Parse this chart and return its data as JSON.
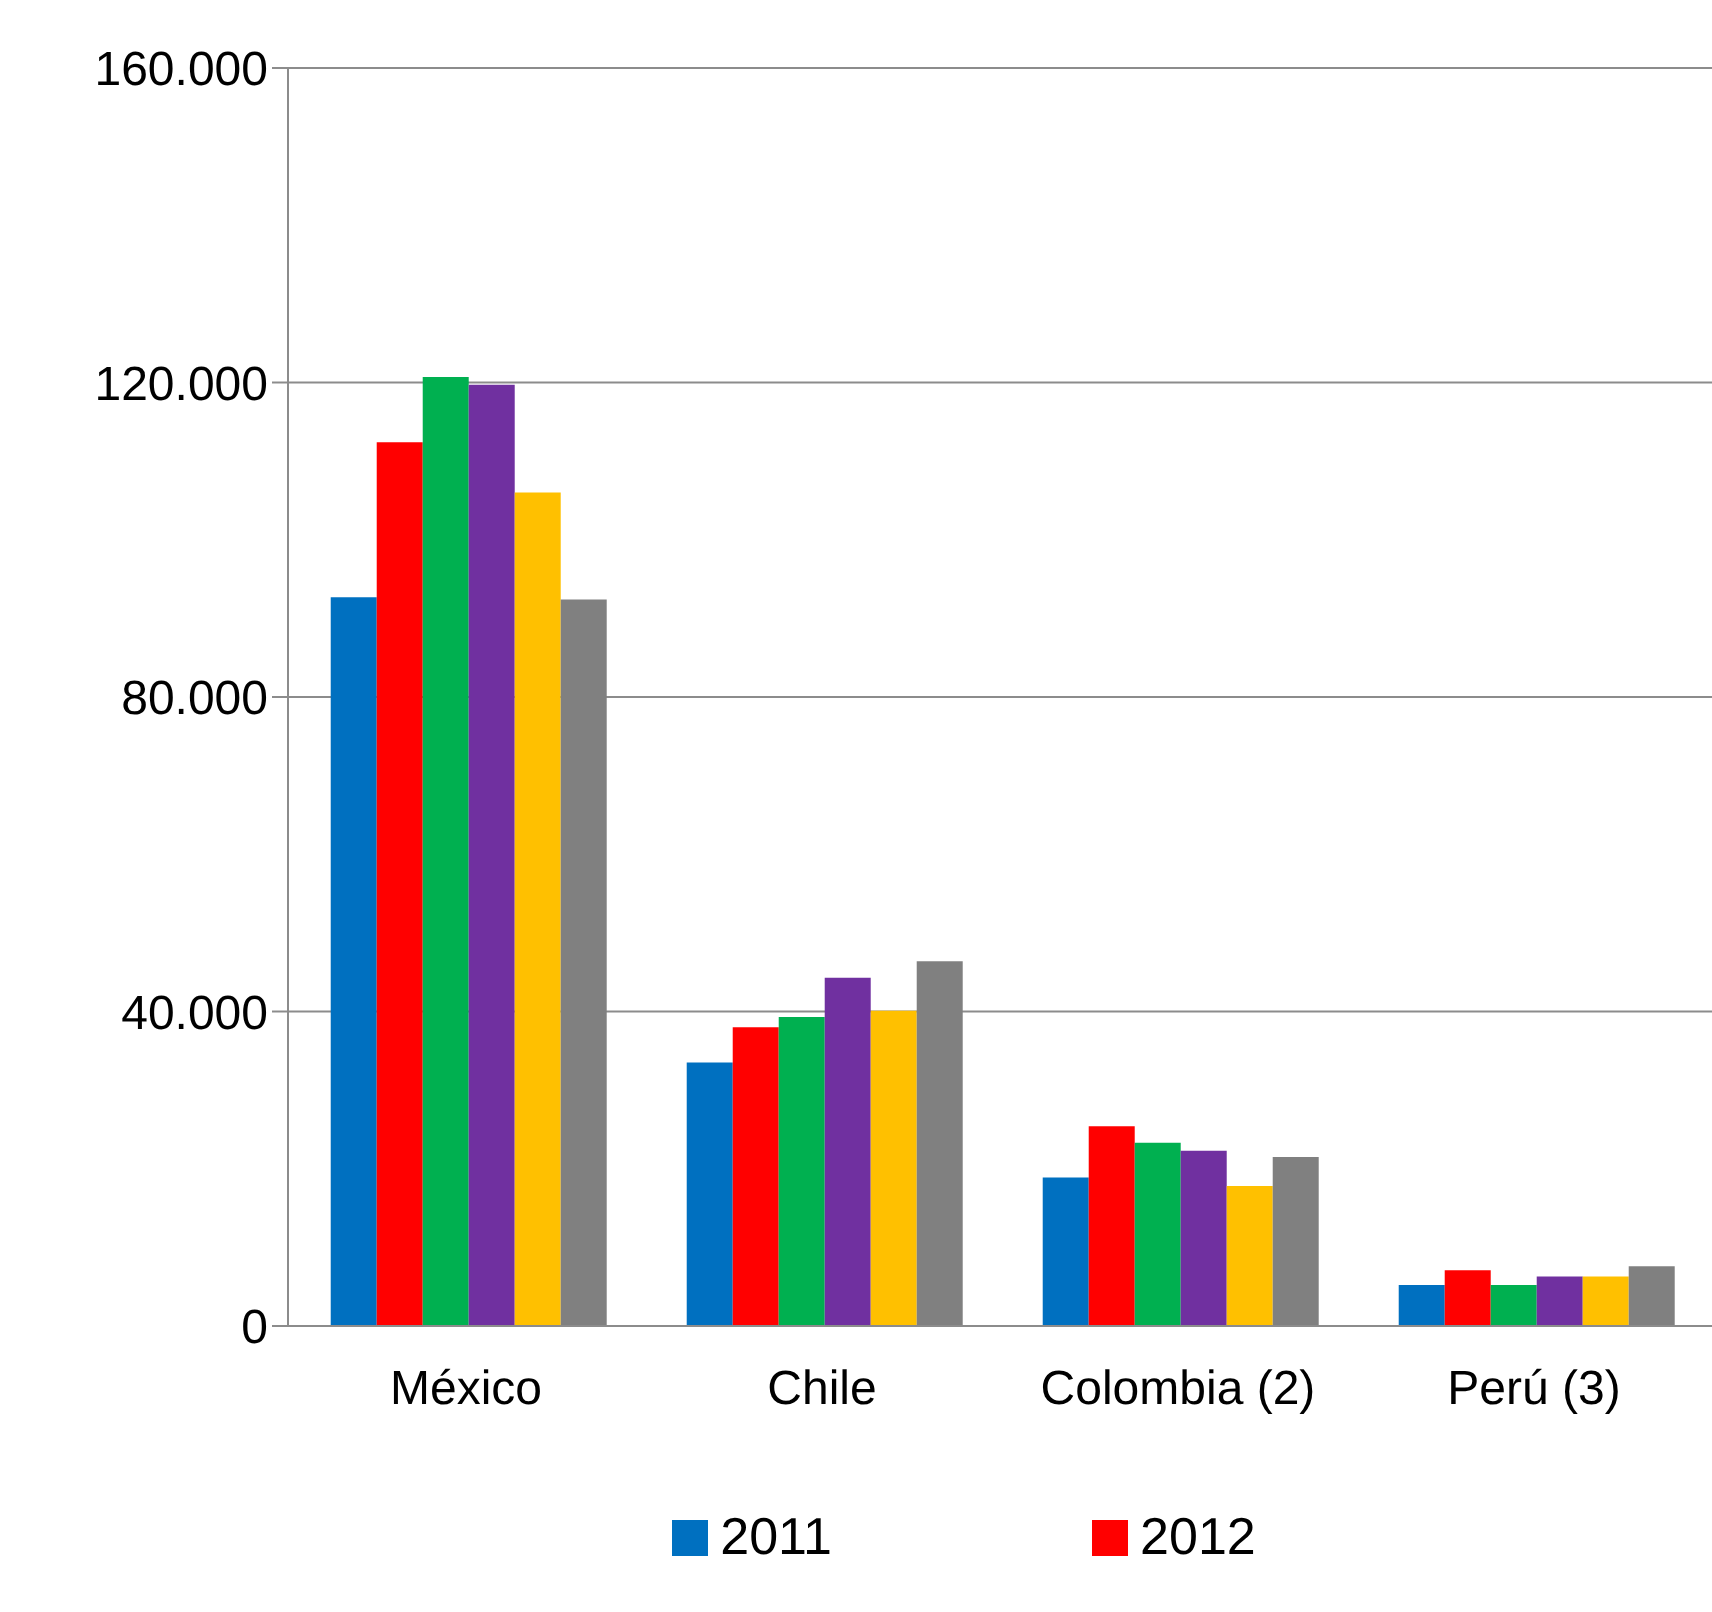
{
  "chart_data": {
    "type": "bar",
    "categories": [
      "México",
      "Chile",
      "Colombia (2)",
      "Perú (3)"
    ],
    "series": [
      {
        "name": "2011",
        "color": "#0070c0",
        "values": [
          92700,
          33500,
          18900,
          5200
        ]
      },
      {
        "name": "2012",
        "color": "#ff0000",
        "values": [
          112400,
          38000,
          25400,
          7100
        ]
      },
      {
        "color": "#00b050",
        "values": [
          120700,
          39300,
          23300,
          5200
        ]
      },
      {
        "color": "#7030a0",
        "values": [
          119700,
          44300,
          22300,
          6300
        ]
      },
      {
        "color": "#ffc000",
        "values": [
          106000,
          40100,
          17800,
          6300
        ]
      },
      {
        "color": "#808080",
        "values": [
          92400,
          46400,
          21500,
          7600
        ]
      }
    ],
    "ylim": [
      0,
      160000
    ],
    "yticks": [
      {
        "value": 0,
        "label": "0"
      },
      {
        "value": 40000,
        "label": "40.000"
      },
      {
        "value": 80000,
        "label": "80.000"
      },
      {
        "value": 120000,
        "label": "120.000"
      },
      {
        "value": 160000,
        "label": "160.000"
      }
    ],
    "grid": "y",
    "legend": "bottom"
  }
}
